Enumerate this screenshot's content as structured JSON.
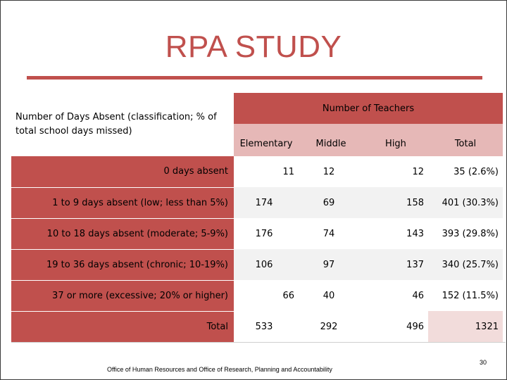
{
  "title": "RPA STUDY",
  "header": {
    "row_label": "Number of Days Absent (classification; % of total school days missed)",
    "group_label": "Number of Teachers",
    "columns": [
      "Elementary",
      "Middle",
      "High",
      "Total"
    ]
  },
  "rows": [
    {
      "label": "0 days absent",
      "elementary": "11",
      "middle": "12",
      "high": "12",
      "total": "35 (2.6%)"
    },
    {
      "label": "1 to 9 days absent (low; less than 5%)",
      "elementary": "174",
      "middle": "69",
      "high": "158",
      "total": "401 (30.3%)"
    },
    {
      "label": "10 to 18 days absent (moderate; 5-9%)",
      "elementary": "176",
      "middle": "74",
      "high": "143",
      "total": "393 (29.8%)"
    },
    {
      "label": "19 to 36 days absent (chronic; 10-19%)",
      "elementary": "106",
      "middle": "97",
      "high": "137",
      "total": "340 (25.7%)"
    },
    {
      "label": "37 or more (excessive; 20% or higher)",
      "elementary": "66",
      "middle": "40",
      "high": "46",
      "total": "152 (11.5%)"
    },
    {
      "label": "Total",
      "elementary": "533",
      "middle": "292",
      "high": "496",
      "total": "1321"
    }
  ],
  "footer": "Office of Human Resources and Office of Research, Planning and Accountability",
  "page_number": "30",
  "colors": {
    "accent": "#c0504d",
    "light": "#e6b8b7",
    "stripe": "#f2f2f2"
  }
}
